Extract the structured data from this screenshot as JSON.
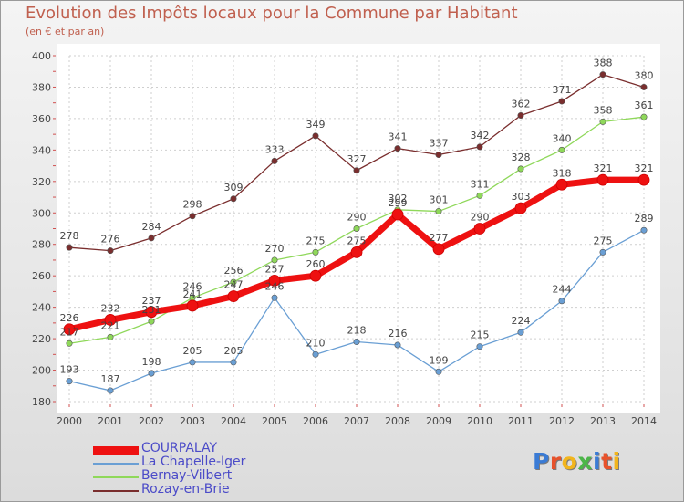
{
  "title": "Evolution des Impôts locaux pour la Commune par Habitant",
  "subtitle": "(en € et par an)",
  "logo": {
    "text": "Proxiti",
    "letter_colors": [
      "#3a7bd5",
      "#e8522b",
      "#f2b51d",
      "#4cb649",
      "#3a7bd5",
      "#e8522b",
      "#f2b51d"
    ]
  },
  "chart_data": {
    "type": "line",
    "title": "Evolution des Impôts locaux pour la Commune par Habitant",
    "subtitle": "(en € et par an)",
    "xlabel": "",
    "ylabel": "",
    "x": [
      "2000",
      "2001",
      "2002",
      "2003",
      "2004",
      "2005",
      "2006",
      "2007",
      "2008",
      "2009",
      "2010",
      "2011",
      "2012",
      "2013",
      "2014"
    ],
    "ylim": [
      180,
      400
    ],
    "yticks": [
      180,
      200,
      220,
      240,
      260,
      280,
      300,
      320,
      340,
      360,
      380,
      400
    ],
    "grid": true,
    "legend_position": "bottom-left",
    "series": [
      {
        "name": "COURPALAY",
        "color": "#ee1111",
        "emphasis": true,
        "values": [
          226,
          232,
          237,
          241,
          247,
          257,
          260,
          275,
          299,
          277,
          290,
          303,
          318,
          321,
          321
        ]
      },
      {
        "name": "La Chapelle-Iger",
        "color": "#6a9fd4",
        "values": [
          193,
          187,
          198,
          205,
          205,
          246,
          210,
          218,
          216,
          199,
          215,
          224,
          244,
          275,
          289
        ]
      },
      {
        "name": "Bernay-Vilbert",
        "color": "#8fd85a",
        "values": [
          217,
          221,
          231,
          246,
          256,
          270,
          275,
          290,
          302,
          301,
          311,
          328,
          340,
          358,
          361
        ]
      },
      {
        "name": "Rozay-en-Brie",
        "color": "#7a2e2e",
        "values": [
          278,
          276,
          284,
          298,
          309,
          333,
          349,
          327,
          341,
          337,
          342,
          362,
          371,
          388,
          380
        ]
      }
    ]
  }
}
